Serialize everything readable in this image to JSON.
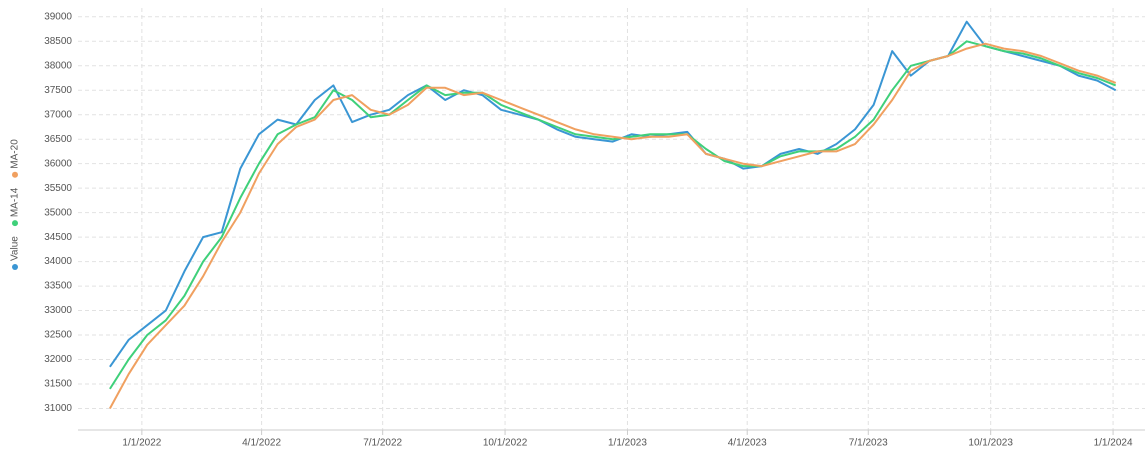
{
  "chart_data": {
    "type": "line",
    "x": [
      "12/8/2021",
      "12/22/2021",
      "1/5/2022",
      "1/19/2022",
      "2/2/2022",
      "2/16/2022",
      "3/2/2022",
      "3/16/2022",
      "3/30/2022",
      "4/13/2022",
      "4/27/2022",
      "5/11/2022",
      "5/25/2022",
      "6/8/2022",
      "6/22/2022",
      "7/6/2022",
      "7/20/2022",
      "8/3/2022",
      "8/17/2022",
      "8/31/2022",
      "9/14/2022",
      "9/28/2022",
      "10/12/2022",
      "10/26/2022",
      "11/9/2022",
      "11/23/2022",
      "12/7/2022",
      "12/21/2022",
      "1/4/2023",
      "1/18/2023",
      "2/1/2023",
      "2/15/2023",
      "3/1/2023",
      "3/15/2023",
      "3/29/2023",
      "4/12/2023",
      "4/26/2023",
      "5/10/2023",
      "5/24/2023",
      "6/7/2023",
      "6/21/2023",
      "7/5/2023",
      "7/19/2023",
      "8/2/2023",
      "8/16/2023",
      "8/30/2023",
      "9/13/2023",
      "9/27/2023",
      "10/11/2023",
      "10/25/2023",
      "11/8/2023",
      "11/22/2023",
      "12/6/2023",
      "12/20/2023",
      "1/3/2024"
    ],
    "series": [
      {
        "name": "Value",
        "color": "#3a96d4",
        "values": [
          31850,
          32400,
          32700,
          33000,
          33800,
          34500,
          34600,
          35900,
          36600,
          36900,
          36800,
          37300,
          37600,
          36850,
          37000,
          37100,
          37400,
          37600,
          37300,
          37500,
          37400,
          37100,
          37000,
          36900,
          36700,
          36550,
          36500,
          36450,
          36600,
          36550,
          36600,
          36650,
          36200,
          36100,
          35900,
          35950,
          36200,
          36300,
          36200,
          36400,
          36700,
          37200,
          38300,
          37800,
          38100,
          38200,
          38900,
          38400,
          38300,
          38200,
          38100,
          38000,
          37800,
          37700,
          37500
        ]
      },
      {
        "name": "MA-14",
        "color": "#3fd07a",
        "values": [
          31400,
          32000,
          32500,
          32800,
          33300,
          34000,
          34500,
          35300,
          36000,
          36600,
          36800,
          36950,
          37500,
          37300,
          36950,
          37000,
          37300,
          37600,
          37400,
          37450,
          37450,
          37200,
          37050,
          36900,
          36750,
          36600,
          36550,
          36500,
          36550,
          36600,
          36600,
          36600,
          36300,
          36050,
          35950,
          35950,
          36150,
          36250,
          36250,
          36300,
          36550,
          36900,
          37500,
          38000,
          38100,
          38200,
          38500,
          38400,
          38300,
          38250,
          38150,
          38000,
          37850,
          37750,
          37600
        ]
      },
      {
        "name": "MA-20",
        "color": "#f0a060",
        "values": [
          31000,
          31700,
          32300,
          32700,
          33100,
          33700,
          34400,
          35000,
          35800,
          36400,
          36750,
          36900,
          37300,
          37400,
          37100,
          37000,
          37200,
          37550,
          37550,
          37400,
          37450,
          37300,
          37150,
          37000,
          36850,
          36700,
          36600,
          36550,
          36500,
          36550,
          36550,
          36600,
          36200,
          36100,
          36000,
          35950,
          36050,
          36150,
          36250,
          36250,
          36400,
          36800,
          37300,
          37900,
          38100,
          38200,
          38350,
          38450,
          38350,
          38300,
          38200,
          38050,
          37900,
          37800,
          37650
        ]
      }
    ],
    "xlim": [
      "11/14/2021",
      "1/25/2024"
    ],
    "xticks": [
      "1/1/2022",
      "4/1/2022",
      "7/1/2022",
      "10/1/2022",
      "1/1/2023",
      "4/1/2023",
      "7/1/2023",
      "10/1/2023",
      "1/1/2024"
    ],
    "ylim": [
      30560,
      39180
    ],
    "yticks": [
      31000,
      31500,
      32000,
      32500,
      33000,
      33500,
      34000,
      34500,
      35000,
      35500,
      36000,
      36500,
      37000,
      37500,
      38000,
      38500,
      39000
    ],
    "grid": true,
    "legend": "left"
  }
}
